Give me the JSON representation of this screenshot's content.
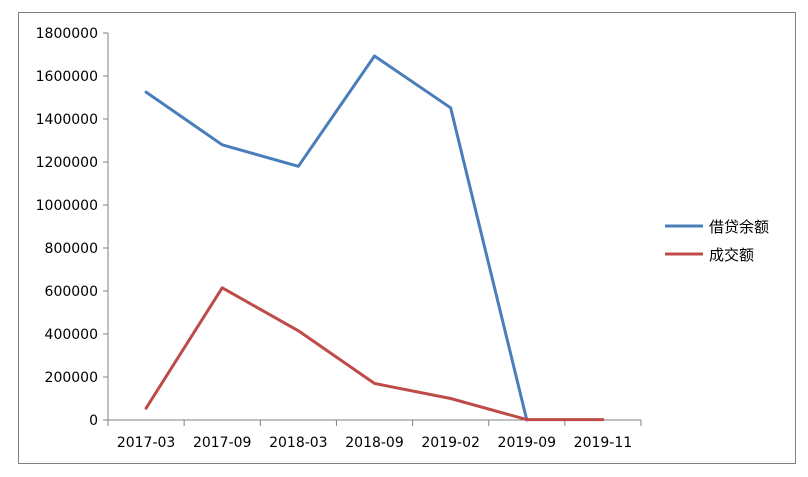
{
  "chart_data": {
    "type": "line",
    "categories": [
      "2017-03",
      "2017-09",
      "2018-03",
      "2018-09",
      "2019-02",
      "2019-09",
      "2019-11"
    ],
    "series": [
      {
        "name": "借贷余额",
        "color": "#4a7ebb",
        "values": [
          1525000,
          1280000,
          1180000,
          1693000,
          1452000,
          0,
          null
        ]
      },
      {
        "name": "成交额",
        "color": "#be4b48",
        "values": [
          55000,
          615000,
          415000,
          170000,
          100000,
          2000,
          2000
        ]
      }
    ],
    "ylim": [
      0,
      1800000
    ],
    "yticks": [
      0,
      200000,
      400000,
      600000,
      800000,
      1000000,
      1200000,
      1400000,
      1600000,
      1800000
    ],
    "grid": false,
    "legend": "right"
  }
}
